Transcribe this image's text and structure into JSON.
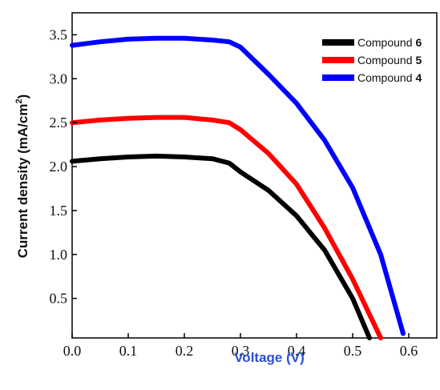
{
  "chart_data": {
    "type": "line",
    "xlabel": "Voltage (V)",
    "ylabel": "Current density (mA/cm",
    "ylabel_sup": "2",
    "ylabel_close": ")",
    "xlim": [
      0.0,
      0.65
    ],
    "ylim": [
      0.05,
      3.75
    ],
    "x_ticks": [
      "0.0",
      "0.1",
      "0.2",
      "0.3",
      "0.4",
      "0.5",
      "0.6"
    ],
    "x_tick_values": [
      0.0,
      0.1,
      0.2,
      0.3,
      0.4,
      0.5,
      0.6
    ],
    "y_ticks": [
      "0.5",
      "1.0",
      "1.5",
      "2.0",
      "2.5",
      "3.0",
      "3.5"
    ],
    "y_tick_values": [
      0.5,
      1.0,
      1.5,
      2.0,
      2.5,
      3.0,
      3.5
    ],
    "grid": false,
    "legend_position": "top-right",
    "colors": {
      "compound6": "#000000",
      "compound5": "#ff0000",
      "compound4": "#0000ff",
      "xlabel": "#2a4fd6"
    },
    "series": [
      {
        "name": "Compound",
        "number": "6",
        "color": "#000000",
        "x": [
          0.0,
          0.05,
          0.1,
          0.15,
          0.2,
          0.25,
          0.28,
          0.3,
          0.35,
          0.4,
          0.45,
          0.5,
          0.53
        ],
        "y": [
          2.06,
          2.09,
          2.11,
          2.12,
          2.11,
          2.09,
          2.04,
          1.94,
          1.73,
          1.44,
          1.05,
          0.5,
          0.05
        ]
      },
      {
        "name": "Compound",
        "number": "5",
        "color": "#ff0000",
        "x": [
          0.0,
          0.05,
          0.1,
          0.15,
          0.2,
          0.25,
          0.28,
          0.3,
          0.35,
          0.4,
          0.45,
          0.5,
          0.55
        ],
        "y": [
          2.5,
          2.53,
          2.55,
          2.56,
          2.56,
          2.53,
          2.5,
          2.42,
          2.15,
          1.8,
          1.3,
          0.72,
          0.05
        ]
      },
      {
        "name": "Compound",
        "number": "4",
        "color": "#0000ff",
        "x": [
          0.0,
          0.05,
          0.1,
          0.15,
          0.2,
          0.25,
          0.28,
          0.3,
          0.35,
          0.4,
          0.45,
          0.5,
          0.55,
          0.59
        ],
        "y": [
          3.38,
          3.42,
          3.45,
          3.46,
          3.46,
          3.44,
          3.42,
          3.36,
          3.05,
          2.72,
          2.3,
          1.76,
          1.0,
          0.1
        ]
      }
    ]
  }
}
